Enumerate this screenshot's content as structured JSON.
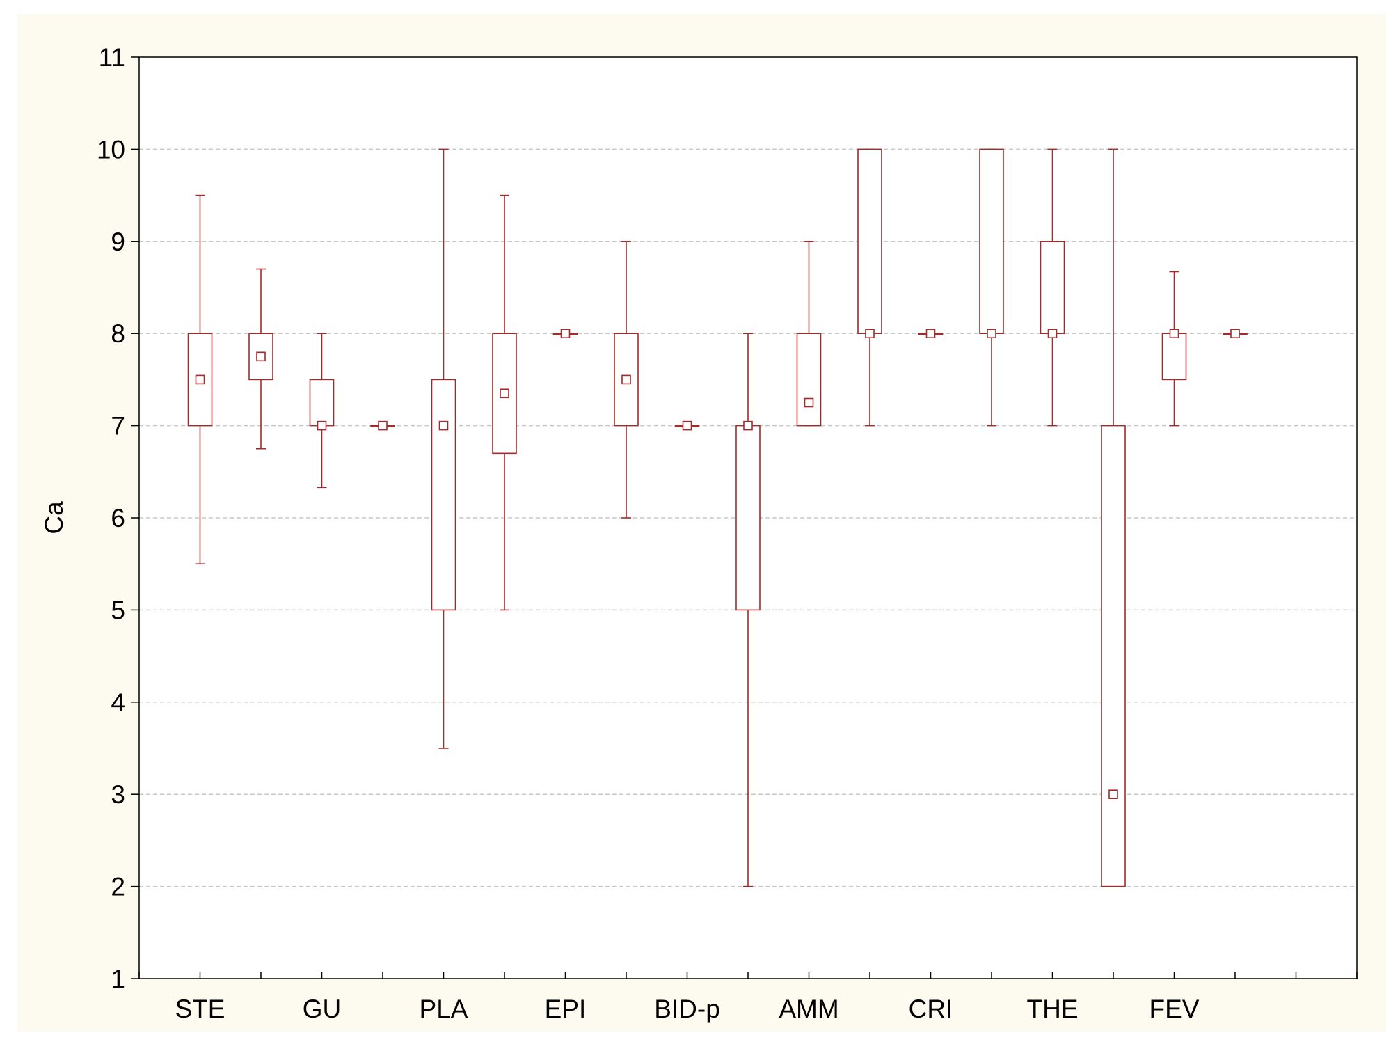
{
  "chart_data": {
    "type": "box",
    "title": "",
    "xlabel": "",
    "ylabel": "Ca",
    "ylim": [
      1,
      11
    ],
    "yticks": [
      1,
      2,
      3,
      4,
      5,
      6,
      7,
      8,
      9,
      10,
      11
    ],
    "grid": "horizontal dashed",
    "categories": [
      "STE",
      "GU",
      "PLA",
      "EPI",
      "BID-p",
      "AMM",
      "CRI",
      "THE",
      "FEV"
    ],
    "colors": {
      "box": "#a52a2a",
      "frame_background": "#fdfaf0",
      "plot_background": "#ffffff",
      "grid": "#c8c8c8"
    },
    "boxes": [
      {
        "min": 5.5,
        "q1": 7.0,
        "median": 7.5,
        "q3": 8.0,
        "max": 9.5
      },
      {
        "min": 6.75,
        "q1": 7.5,
        "median": 7.75,
        "q3": 8.0,
        "max": 8.7
      },
      {
        "min": 6.33,
        "q1": 7.0,
        "median": 7.0,
        "q3": 7.5,
        "max": 8.0
      },
      {
        "min": 7.0,
        "q1": 7.0,
        "median": 7.0,
        "q3": 7.0,
        "max": 7.0
      },
      {
        "min": 3.5,
        "q1": 5.0,
        "median": 7.0,
        "q3": 7.5,
        "max": 10.0
      },
      {
        "min": 5.0,
        "q1": 6.7,
        "median": 7.35,
        "q3": 8.0,
        "max": 9.5
      },
      {
        "min": 8.0,
        "q1": 8.0,
        "median": 8.0,
        "q3": 8.0,
        "max": 8.0
      },
      {
        "min": 6.0,
        "q1": 7.0,
        "median": 7.5,
        "q3": 8.0,
        "max": 9.0
      },
      {
        "min": 7.0,
        "q1": 7.0,
        "median": 7.0,
        "q3": 7.0,
        "max": 7.0
      },
      {
        "min": 2.0,
        "q1": 5.0,
        "median": 7.0,
        "q3": 7.0,
        "max": 8.0
      },
      {
        "min": 7.0,
        "q1": 7.0,
        "median": 7.25,
        "q3": 8.0,
        "max": 9.0
      },
      {
        "min": 7.0,
        "q1": 8.0,
        "median": 8.0,
        "q3": 10.0,
        "max": 10.0
      },
      {
        "min": 8.0,
        "q1": 8.0,
        "median": 8.0,
        "q3": 8.0,
        "max": 8.0
      },
      {
        "min": 7.0,
        "q1": 8.0,
        "median": 8.0,
        "q3": 10.0,
        "max": 10.0
      },
      {
        "min": 7.0,
        "q1": 8.0,
        "median": 8.0,
        "q3": 9.0,
        "max": 10.0
      },
      {
        "min": 2.0,
        "q1": 2.0,
        "median": 3.0,
        "q3": 7.0,
        "max": 10.0
      },
      {
        "min": 7.0,
        "q1": 7.5,
        "median": 8.0,
        "q3": 8.0,
        "max": 8.67
      },
      {
        "min": 8.0,
        "q1": 8.0,
        "median": 8.0,
        "q3": 8.0,
        "max": 8.0
      }
    ]
  }
}
